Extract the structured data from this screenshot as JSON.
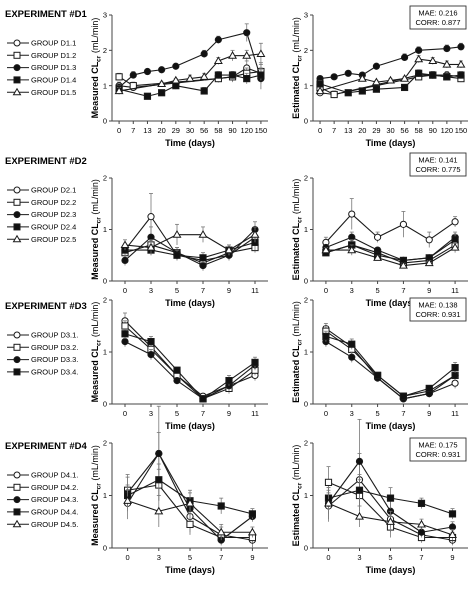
{
  "panel_labels": {
    "y_measured_prefix": "Measured CL",
    "y_estimated_prefix": "Estimated CL",
    "y_sub": "cr",
    "y_unit": "(mL/min)",
    "x_label": "Time (days)"
  },
  "colors": {
    "line": "#1a1a1a",
    "marker_fill": "#111111",
    "open_fill": "#ffffff",
    "error": "#777777",
    "text": "#000000"
  },
  "chart_data": [
    {
      "experiment": "EXPERIMENT #D1",
      "type": "line",
      "categories": [
        "0",
        "7",
        "13",
        "20",
        "29",
        "30",
        "56",
        "58",
        "90",
        "120",
        "150"
      ],
      "ylim": [
        0,
        3
      ],
      "yticks": [
        0,
        1,
        2,
        3
      ],
      "xlabel": "Time (days)",
      "stats": {
        "mae": "MAE: 0.216",
        "corr": "CORR: 0.877"
      },
      "measured": [
        {
          "name": "GROUP D1.1",
          "marker": "circle-open",
          "values": [
            1.0,
            0.95,
            null,
            null,
            null,
            null,
            null,
            1.2,
            1.25,
            1.5,
            1.35
          ],
          "err": [
            0.1,
            0.1,
            null,
            null,
            null,
            null,
            null,
            0.1,
            0.15,
            0.2,
            0.3
          ]
        },
        {
          "name": "GROUP D1.2",
          "marker": "square-open",
          "values": [
            1.25,
            1.0,
            null,
            null,
            null,
            null,
            null,
            1.2,
            1.25,
            1.35,
            1.4
          ],
          "err": [
            0.1,
            0.1,
            null,
            null,
            null,
            null,
            null,
            0.1,
            0.1,
            0.15,
            0.2
          ]
        },
        {
          "name": "GROUP D1.3",
          "marker": "circle-filled",
          "values": [
            0.95,
            1.3,
            1.4,
            1.45,
            1.55,
            null,
            1.9,
            2.3,
            null,
            2.5,
            1.2
          ],
          "err": [
            0.1,
            0.1,
            0.05,
            0.05,
            0.05,
            null,
            0.1,
            0.1,
            null,
            0.25,
            0.3
          ]
        },
        {
          "name": "GROUP D1.4",
          "marker": "square-filled",
          "values": [
            0.9,
            null,
            0.7,
            0.8,
            1.0,
            null,
            0.85,
            1.3,
            1.3,
            1.2,
            1.3
          ],
          "err": [
            0.1,
            null,
            0.05,
            0.05,
            0.1,
            null,
            0.1,
            0.1,
            0.1,
            0.15,
            0.15
          ]
        },
        {
          "name": "GROUP D1.5",
          "marker": "triangle-open",
          "values": [
            0.85,
            null,
            null,
            1.05,
            1.15,
            1.2,
            1.25,
            1.7,
            1.85,
            1.85,
            1.9
          ],
          "err": [
            0.1,
            null,
            null,
            0.05,
            0.05,
            0.1,
            0.1,
            0.1,
            0.15,
            0.15,
            0.3
          ]
        }
      ],
      "estimated": [
        {
          "name": "GROUP D1.1",
          "marker": "circle-open",
          "values": [
            0.8,
            0.75,
            null,
            null,
            null,
            null,
            null,
            1.3,
            1.3,
            1.3,
            1.25
          ],
          "err": [
            0.05,
            0.05,
            null,
            null,
            null,
            null,
            null,
            0.1,
            0.1,
            0.1,
            0.1
          ]
        },
        {
          "name": "GROUP D1.2",
          "marker": "square-open",
          "values": [
            0.95,
            0.75,
            null,
            null,
            null,
            null,
            null,
            1.25,
            1.3,
            1.25,
            1.2
          ],
          "err": [
            0.1,
            0.1,
            null,
            null,
            null,
            null,
            null,
            0.1,
            0.1,
            0.1,
            0.1
          ]
        },
        {
          "name": "GROUP D1.3",
          "marker": "circle-filled",
          "values": [
            1.2,
            1.25,
            1.35,
            1.3,
            1.55,
            null,
            1.8,
            2.0,
            null,
            2.05,
            2.1
          ],
          "err": [
            0.05,
            0.05,
            0.05,
            0.05,
            0.05,
            null,
            0.1,
            0.1,
            null,
            0.1,
            0.1
          ]
        },
        {
          "name": "GROUP D1.4",
          "marker": "square-filled",
          "values": [
            1.05,
            null,
            0.8,
            0.85,
            0.9,
            null,
            0.95,
            1.35,
            1.3,
            1.25,
            1.3
          ],
          "err": [
            0.1,
            null,
            0.05,
            0.05,
            0.05,
            null,
            0.05,
            0.1,
            0.1,
            0.1,
            0.1
          ]
        },
        {
          "name": "GROUP D1.5",
          "marker": "triangle-open",
          "values": [
            0.85,
            null,
            null,
            1.2,
            1.1,
            1.15,
            1.2,
            1.75,
            1.7,
            1.6,
            1.6
          ],
          "err": [
            0.1,
            null,
            null,
            0.05,
            0.05,
            0.05,
            0.05,
            0.1,
            0.1,
            0.1,
            0.1
          ]
        }
      ]
    },
    {
      "experiment": "EXPERIMENT #D2",
      "type": "line",
      "categories": [
        "0",
        "3",
        "5",
        "7",
        "9",
        "11"
      ],
      "ylim": [
        0,
        2
      ],
      "yticks": [
        0,
        1,
        2
      ],
      "xlabel": "Time (days)",
      "stats": {
        "mae": "MAE: 0.141",
        "corr": "CORR: 0.775"
      },
      "measured": [
        {
          "name": "GROUP D2.1",
          "marker": "circle-open",
          "values": [
            0.6,
            1.25,
            0.5,
            0.4,
            0.5,
            0.85
          ],
          "err": [
            0.1,
            0.45,
            0.1,
            0.1,
            0.1,
            0.15
          ]
        },
        {
          "name": "GROUP D2.2",
          "marker": "square-open",
          "values": [
            0.55,
            0.7,
            0.55,
            0.35,
            0.55,
            0.65
          ],
          "err": [
            0.1,
            0.15,
            0.1,
            0.1,
            0.1,
            0.1
          ]
        },
        {
          "name": "GROUP D2.3",
          "marker": "circle-filled",
          "values": [
            0.4,
            0.85,
            0.55,
            0.3,
            0.5,
            1.0
          ],
          "err": [
            0.1,
            0.2,
            0.1,
            0.1,
            0.1,
            0.15
          ]
        },
        {
          "name": "GROUP D2.4",
          "marker": "square-filled",
          "values": [
            0.6,
            0.6,
            0.5,
            0.45,
            0.6,
            0.75
          ],
          "err": [
            0.1,
            0.1,
            0.1,
            0.1,
            0.1,
            0.15
          ]
        },
        {
          "name": "GROUP D2.5",
          "marker": "triangle-open",
          "values": [
            0.7,
            0.65,
            0.9,
            0.9,
            0.6,
            0.9
          ],
          "err": [
            0.1,
            0.15,
            0.2,
            0.15,
            0.1,
            0.15
          ]
        }
      ],
      "estimated": [
        {
          "name": "GROUP D2.1",
          "marker": "circle-open",
          "values": [
            0.75,
            1.3,
            0.85,
            1.1,
            0.8,
            1.15
          ],
          "err": [
            0.1,
            0.3,
            0.1,
            0.25,
            0.15,
            0.1
          ]
        },
        {
          "name": "GROUP D2.2",
          "marker": "square-open",
          "values": [
            0.55,
            0.7,
            0.55,
            0.35,
            0.4,
            0.7
          ],
          "err": [
            0.05,
            0.1,
            0.05,
            0.05,
            0.05,
            0.1
          ]
        },
        {
          "name": "GROUP D2.3",
          "marker": "circle-filled",
          "values": [
            0.65,
            0.85,
            0.6,
            0.4,
            0.45,
            0.85
          ],
          "err": [
            0.05,
            0.1,
            0.05,
            0.05,
            0.05,
            0.1
          ]
        },
        {
          "name": "GROUP D2.4",
          "marker": "square-filled",
          "values": [
            0.55,
            0.7,
            0.5,
            0.4,
            0.45,
            0.8
          ],
          "err": [
            0.05,
            0.1,
            0.05,
            0.05,
            0.05,
            0.1
          ]
        },
        {
          "name": "GROUP D2.5",
          "marker": "triangle-open",
          "values": [
            0.6,
            0.6,
            0.45,
            0.3,
            0.35,
            0.65
          ],
          "err": [
            0.05,
            0.1,
            0.05,
            0.05,
            0.05,
            0.1
          ]
        }
      ]
    },
    {
      "experiment": "EXPERIMENT #D3",
      "type": "line",
      "categories": [
        "0",
        "3",
        "5",
        "7",
        "9",
        "11"
      ],
      "ylim": [
        0,
        2
      ],
      "yticks": [
        0,
        1,
        2
      ],
      "xlabel": "Time (days)",
      "stats": {
        "mae": "MAE: 0.138",
        "corr": "CORR: 0.931"
      },
      "measured": [
        {
          "name": "GROUP D3.1.",
          "marker": "circle-open",
          "values": [
            1.6,
            1.1,
            0.55,
            0.15,
            0.35,
            0.55
          ],
          "err": [
            0.15,
            0.1,
            0.1,
            0.05,
            0.1,
            0.1
          ]
        },
        {
          "name": "GROUP D3.2.",
          "marker": "square-open",
          "values": [
            1.5,
            1.05,
            0.55,
            0.1,
            0.3,
            0.65
          ],
          "err": [
            0.1,
            0.1,
            0.1,
            0.05,
            0.1,
            0.1
          ]
        },
        {
          "name": "GROUP D3.3.",
          "marker": "circle-filled",
          "values": [
            1.2,
            0.95,
            0.45,
            0.1,
            0.35,
            0.75
          ],
          "err": [
            0.1,
            0.1,
            0.05,
            0.05,
            0.1,
            0.1
          ]
        },
        {
          "name": "GROUP D3.4.",
          "marker": "square-filled",
          "values": [
            1.35,
            1.2,
            0.65,
            0.1,
            0.45,
            0.8
          ],
          "err": [
            0.1,
            0.1,
            0.05,
            0.05,
            0.1,
            0.1
          ]
        }
      ],
      "estimated": [
        {
          "name": "GROUP D3.1.",
          "marker": "circle-open",
          "values": [
            1.45,
            1.1,
            0.5,
            0.1,
            0.2,
            0.4
          ],
          "err": [
            0.1,
            0.1,
            0.05,
            0.05,
            0.05,
            0.1
          ]
        },
        {
          "name": "GROUP D3.2.",
          "marker": "square-open",
          "values": [
            1.4,
            1.05,
            0.55,
            0.15,
            0.25,
            0.55
          ],
          "err": [
            0.1,
            0.1,
            0.05,
            0.05,
            0.05,
            0.1
          ]
        },
        {
          "name": "GROUP D3.3.",
          "marker": "circle-filled",
          "values": [
            1.2,
            0.9,
            0.5,
            0.1,
            0.2,
            0.55
          ],
          "err": [
            0.1,
            0.1,
            0.05,
            0.05,
            0.05,
            0.1
          ]
        },
        {
          "name": "GROUP D3.4.",
          "marker": "square-filled",
          "values": [
            1.3,
            1.15,
            0.55,
            0.15,
            0.3,
            0.7
          ],
          "err": [
            0.1,
            0.1,
            0.05,
            0.05,
            0.05,
            0.1
          ]
        }
      ]
    },
    {
      "experiment": "EXPERIMENT #D4",
      "type": "line",
      "categories": [
        "0",
        "3",
        "5",
        "7",
        "9"
      ],
      "ylim": [
        0,
        2
      ],
      "yticks": [
        0,
        1,
        2
      ],
      "xlabel": "Time (days)",
      "stats": {
        "mae": "MAE: 0.175",
        "corr": "CORR: 0.931"
      },
      "measured": [
        {
          "name": "GROUP D4.1.",
          "marker": "circle-open",
          "values": [
            0.85,
            1.8,
            0.6,
            0.25,
            0.15
          ],
          "err": [
            0.3,
            0.9,
            0.3,
            0.15,
            0.15
          ]
        },
        {
          "name": "GROUP D4.2.",
          "marker": "square-open",
          "values": [
            1.1,
            1.2,
            0.45,
            0.2,
            0.2
          ],
          "err": [
            0.3,
            0.3,
            0.2,
            0.1,
            0.1
          ]
        },
        {
          "name": "GROUP D4.3.",
          "marker": "circle-filled",
          "values": [
            1.05,
            1.8,
            0.75,
            0.15,
            0.6
          ],
          "err": [
            0.3,
            0.4,
            0.2,
            0.1,
            0.1
          ]
        },
        {
          "name": "GROUP D4.4.",
          "marker": "square-filled",
          "values": [
            1.0,
            1.3,
            0.9,
            0.8,
            0.65
          ],
          "err": [
            0.2,
            0.3,
            0.2,
            0.15,
            0.1
          ]
        },
        {
          "name": "GROUP D4.5.",
          "marker": "triangle-open",
          "values": [
            0.9,
            0.7,
            0.85,
            0.3,
            0.3
          ],
          "err": [
            0.2,
            0.3,
            0.2,
            0.15,
            0.1
          ]
        }
      ],
      "estimated": [
        {
          "name": "GROUP D4.1.",
          "marker": "circle-open",
          "values": [
            0.8,
            1.3,
            0.55,
            0.25,
            0.15
          ],
          "err": [
            0.3,
            0.5,
            0.2,
            0.1,
            0.1
          ]
        },
        {
          "name": "GROUP D4.2.",
          "marker": "square-open",
          "values": [
            1.25,
            1.0,
            0.4,
            0.2,
            0.2
          ],
          "err": [
            0.3,
            0.3,
            0.2,
            0.1,
            0.1
          ]
        },
        {
          "name": "GROUP D4.3.",
          "marker": "circle-filled",
          "values": [
            0.85,
            1.65,
            0.7,
            0.3,
            0.4
          ],
          "err": [
            0.3,
            0.8,
            0.2,
            0.1,
            0.1
          ]
        },
        {
          "name": "GROUP D4.4.",
          "marker": "square-filled",
          "values": [
            0.95,
            1.1,
            0.95,
            0.85,
            0.65
          ],
          "err": [
            0.2,
            0.3,
            0.2,
            0.1,
            0.1
          ]
        },
        {
          "name": "GROUP D4.5.",
          "marker": "triangle-open",
          "values": [
            0.85,
            0.6,
            0.5,
            0.45,
            0.25
          ],
          "err": [
            0.2,
            0.2,
            0.2,
            0.1,
            0.1
          ]
        }
      ]
    }
  ]
}
